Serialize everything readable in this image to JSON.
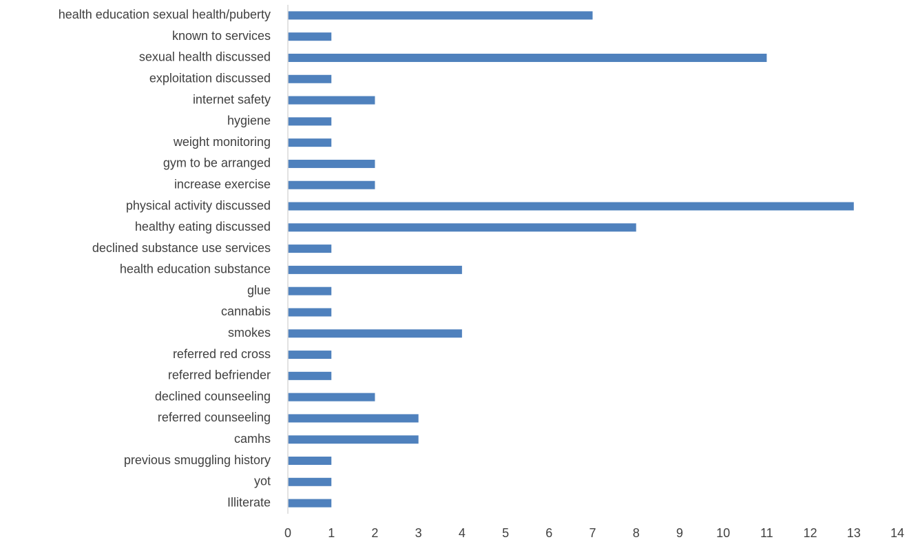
{
  "chart_data": {
    "type": "bar",
    "orientation": "horizontal",
    "categories": [
      "health education sexual health/puberty",
      "known to services",
      "sexual health discussed",
      "exploitation discussed",
      "internet safety",
      "hygiene",
      "weight monitoring",
      "gym to be arranged",
      "increase exercise",
      "physical activity discussed",
      "healthy eating discussed",
      "declined substance use services",
      "health education substance",
      "glue",
      "cannabis",
      "smokes",
      "referred red cross",
      "referred befriender ",
      "declined counseeling",
      "referred counseeling",
      "camhs",
      "previous smuggling history",
      "yot",
      "Illiterate"
    ],
    "values": [
      7,
      1,
      11,
      1,
      2,
      1,
      1,
      2,
      2,
      13,
      8,
      1,
      4,
      1,
      1,
      4,
      1,
      1,
      2,
      3,
      3,
      1,
      1,
      1
    ],
    "xlim": [
      0,
      14
    ],
    "x_ticks": [
      0,
      1,
      2,
      3,
      4,
      5,
      6,
      7,
      8,
      9,
      10,
      11,
      12,
      13,
      14
    ],
    "title": "",
    "xlabel": "",
    "ylabel": "",
    "grid": false,
    "legend": "none",
    "bar_color": "#4f81bd",
    "axis_color": "#d9d9d9",
    "text_color": "#404040"
  }
}
